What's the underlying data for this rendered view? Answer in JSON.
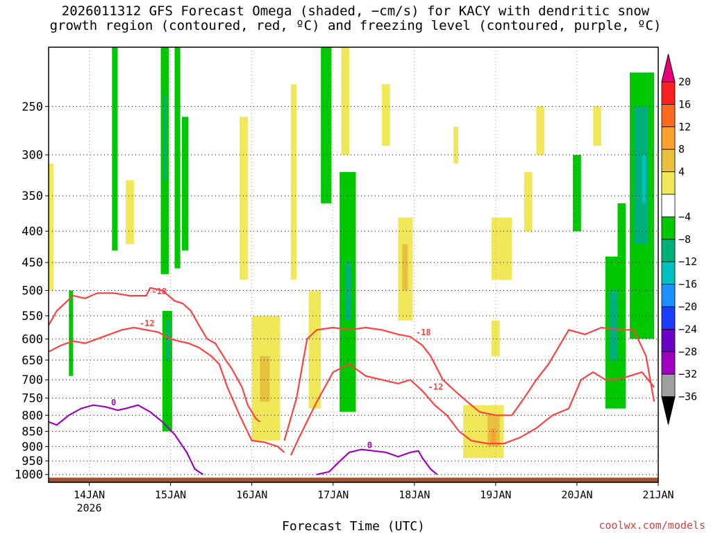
{
  "title_line1": "2026011312 GFS Forecast Omega (shaded, −cm/s) for KACY with dendritic snow",
  "title_line2": "growth region (contoured, red, ºC) and freezing level (contoured, purple, ºC)",
  "watermark": "coolwx.com/models",
  "chart_data": {
    "type": "heatmap",
    "xlabel": "Forecast Time (UTC)",
    "ylabel": "",
    "x_ticks": [
      {
        "x": 0.5,
        "label": "14JAN",
        "sublabel": "2026"
      },
      {
        "x": 1.5,
        "label": "15JAN"
      },
      {
        "x": 2.5,
        "label": "16JAN"
      },
      {
        "x": 3.5,
        "label": "17JAN"
      },
      {
        "x": 4.5,
        "label": "18JAN"
      },
      {
        "x": 5.5,
        "label": "19JAN"
      },
      {
        "x": 6.5,
        "label": "20JAN"
      },
      {
        "x": 7.5,
        "label": "21JAN"
      }
    ],
    "xlim": [
      0,
      7.5
    ],
    "y_ticks": [
      "250",
      "300",
      "350",
      "400",
      "450",
      "500",
      "550",
      "600",
      "650",
      "700",
      "750",
      "800",
      "850",
      "900",
      "950",
      "1000"
    ],
    "ylim": [
      200,
      1030
    ],
    "colorbar": {
      "labels": [
        "20",
        "16",
        "12",
        "8",
        "4",
        "−4",
        "−8",
        "−12",
        "−16",
        "−20",
        "−24",
        "−28",
        "−32",
        "−36"
      ],
      "colors": [
        "#ff2020",
        "#ff6a20",
        "#ffa030",
        "#e8c040",
        "#f0e858",
        "#ffffff",
        "#00c800",
        "#00b07a",
        "#00c0c0",
        "#1e90ff",
        "#1e3cff",
        "#6a00c8",
        "#a000c0",
        "#a0a0a0"
      ],
      "top_arrow_color": "#e8007a",
      "bottom_arrow_color": "#000000"
    },
    "shaded_regions": [
      {
        "level": 4,
        "x0": 0.0,
        "x1": 0.06,
        "p0": 310,
        "p1": 500
      },
      {
        "level": -4,
        "x0": 0.25,
        "x1": 0.3,
        "p0": 500,
        "p1": 690
      },
      {
        "level": -4,
        "x0": 0.78,
        "x1": 0.85,
        "p0": 200,
        "p1": 430
      },
      {
        "level": 4,
        "x0": 0.95,
        "x1": 1.05,
        "p0": 330,
        "p1": 420
      },
      {
        "level": -4,
        "x0": 1.38,
        "x1": 1.48,
        "p0": 200,
        "p1": 470
      },
      {
        "level": -12,
        "x0": 1.41,
        "x1": 1.45,
        "p0": 240,
        "p1": 330
      },
      {
        "level": -4,
        "x0": 1.4,
        "x1": 1.52,
        "p0": 540,
        "p1": 850
      },
      {
        "level": -12,
        "x0": 1.45,
        "x1": 1.49,
        "p0": 560,
        "p1": 650
      },
      {
        "level": -4,
        "x0": 1.55,
        "x1": 1.62,
        "p0": 200,
        "p1": 460
      },
      {
        "level": -4,
        "x0": 1.64,
        "x1": 1.72,
        "p0": 260,
        "p1": 430
      },
      {
        "level": 4,
        "x0": 2.35,
        "x1": 2.45,
        "p0": 260,
        "p1": 480
      },
      {
        "level": 4,
        "x0": 2.5,
        "x1": 2.85,
        "p0": 550,
        "p1": 880
      },
      {
        "level": 8,
        "x0": 2.6,
        "x1": 2.72,
        "p0": 640,
        "p1": 760
      },
      {
        "level": 4,
        "x0": 2.98,
        "x1": 3.05,
        "p0": 230,
        "p1": 480
      },
      {
        "level": 4,
        "x0": 3.2,
        "x1": 3.35,
        "p0": 500,
        "p1": 780
      },
      {
        "level": -4,
        "x0": 3.35,
        "x1": 3.48,
        "p0": 200,
        "p1": 360
      },
      {
        "level": -4,
        "x0": 3.58,
        "x1": 3.78,
        "p0": 320,
        "p1": 790
      },
      {
        "level": -12,
        "x0": 3.65,
        "x1": 3.72,
        "p0": 450,
        "p1": 560
      },
      {
        "level": 4,
        "x0": 3.6,
        "x1": 3.7,
        "p0": 200,
        "p1": 300
      },
      {
        "level": 4,
        "x0": 4.1,
        "x1": 4.2,
        "p0": 230,
        "p1": 290
      },
      {
        "level": 4,
        "x0": 4.3,
        "x1": 4.48,
        "p0": 380,
        "p1": 560
      },
      {
        "level": 8,
        "x0": 4.35,
        "x1": 4.42,
        "p0": 420,
        "p1": 500
      },
      {
        "level": 4,
        "x0": 4.98,
        "x1": 5.04,
        "p0": 270,
        "p1": 310
      },
      {
        "level": 4,
        "x0": 5.1,
        "x1": 5.6,
        "p0": 770,
        "p1": 940
      },
      {
        "level": 8,
        "x0": 5.4,
        "x1": 5.55,
        "p0": 800,
        "p1": 900
      },
      {
        "level": 12,
        "x0": 5.44,
        "x1": 5.5,
        "p0": 840,
        "p1": 890
      },
      {
        "level": 4,
        "x0": 5.45,
        "x1": 5.7,
        "p0": 380,
        "p1": 480
      },
      {
        "level": 4,
        "x0": 5.45,
        "x1": 5.55,
        "p0": 560,
        "p1": 640
      },
      {
        "level": 4,
        "x0": 5.85,
        "x1": 5.95,
        "p0": 320,
        "p1": 400
      },
      {
        "level": 4,
        "x0": 6.0,
        "x1": 6.1,
        "p0": 250,
        "p1": 300
      },
      {
        "level": -4,
        "x0": 6.45,
        "x1": 6.55,
        "p0": 300,
        "p1": 400
      },
      {
        "level": 4,
        "x0": 6.7,
        "x1": 6.8,
        "p0": 250,
        "p1": 290
      },
      {
        "level": -4,
        "x0": 6.85,
        "x1": 7.1,
        "p0": 440,
        "p1": 780
      },
      {
        "level": -12,
        "x0": 6.9,
        "x1": 7.0,
        "p0": 500,
        "p1": 650
      },
      {
        "level": -4,
        "x0": 7.15,
        "x1": 7.45,
        "p0": 220,
        "p1": 600
      },
      {
        "level": -12,
        "x0": 7.2,
        "x1": 7.38,
        "p0": 250,
        "p1": 420
      },
      {
        "level": -16,
        "x0": 7.3,
        "x1": 7.35,
        "p0": 300,
        "p1": 360
      },
      {
        "level": -4,
        "x0": 7.0,
        "x1": 7.1,
        "p0": 360,
        "p1": 440
      }
    ],
    "contours": [
      {
        "label": "-18",
        "color": "#ff4040",
        "x": [
          0.0,
          0.1,
          0.3,
          0.45,
          0.6,
          0.8,
          1.0,
          1.2,
          1.25,
          1.4,
          1.55,
          1.65,
          1.75,
          1.85,
          1.95,
          2.05,
          2.18,
          2.25,
          2.38,
          2.45,
          2.55,
          2.6
        ],
        "p": [
          570,
          540,
          510,
          515,
          505,
          505,
          510,
          510,
          495,
          500,
          520,
          525,
          540,
          570,
          600,
          610,
          650,
          670,
          720,
          770,
          810,
          820
        ]
      },
      {
        "label": "-12",
        "color": "#ff4040",
        "x": [
          0.0,
          0.15,
          0.3,
          0.45,
          0.6,
          0.75,
          0.9,
          1.05,
          1.2,
          1.35,
          1.5,
          1.6,
          1.72,
          1.85,
          2.0,
          2.1,
          2.2,
          2.35,
          2.5,
          2.65,
          2.82,
          2.9
        ],
        "p": [
          630,
          615,
          605,
          610,
          600,
          590,
          580,
          575,
          580,
          585,
          600,
          605,
          610,
          620,
          640,
          660,
          720,
          800,
          880,
          885,
          900,
          920
        ]
      },
      {
        "label": "-18",
        "color": "#ff4040",
        "x": [
          2.9,
          3.05,
          3.18,
          3.3,
          3.5,
          3.7,
          3.9,
          4.1,
          4.3,
          4.45,
          4.6,
          4.7,
          4.85,
          5.0,
          5.15,
          5.3,
          5.5,
          5.7,
          5.85,
          6.0,
          6.15,
          6.4,
          6.6,
          6.8,
          7.0,
          7.2,
          7.35,
          7.45
        ],
        "p": [
          880,
          750,
          600,
          580,
          575,
          580,
          575,
          580,
          590,
          595,
          615,
          640,
          700,
          730,
          760,
          790,
          800,
          800,
          750,
          700,
          660,
          580,
          590,
          575,
          580,
          580,
          640,
          760
        ]
      },
      {
        "label": "-12",
        "color": "#ff4040",
        "x": [
          2.98,
          3.1,
          3.3,
          3.5,
          3.7,
          3.9,
          4.1,
          4.3,
          4.45,
          4.6,
          4.75,
          4.9,
          5.05,
          5.2,
          5.4,
          5.6,
          5.8,
          6.0,
          6.2,
          6.4,
          6.55,
          6.7,
          6.85,
          7.0,
          7.15,
          7.3,
          7.45
        ],
        "p": [
          930,
          860,
          760,
          680,
          660,
          690,
          700,
          710,
          700,
          730,
          770,
          800,
          850,
          880,
          890,
          890,
          870,
          840,
          800,
          780,
          700,
          680,
          700,
          700,
          690,
          680,
          720
        ]
      },
      {
        "label": "0",
        "color": "#a000c0",
        "x": [
          0.0,
          0.1,
          0.25,
          0.4,
          0.55,
          0.7,
          0.85,
          0.95,
          1.1,
          1.25,
          1.4,
          1.55,
          1.7,
          1.8,
          1.9
        ],
        "p": [
          820,
          830,
          800,
          780,
          770,
          775,
          785,
          780,
          770,
          790,
          820,
          860,
          920,
          980,
          1000
        ]
      },
      {
        "label": "0",
        "color": "#a000c0",
        "x": [
          3.3,
          3.45,
          3.55,
          3.7,
          3.85,
          4.0,
          4.15,
          4.3,
          4.45,
          4.55,
          4.6,
          4.7,
          4.78
        ],
        "p": [
          1000,
          990,
          960,
          920,
          910,
          915,
          920,
          935,
          920,
          915,
          940,
          980,
          1000
        ]
      }
    ],
    "terrain_color": "#a0522d"
  }
}
